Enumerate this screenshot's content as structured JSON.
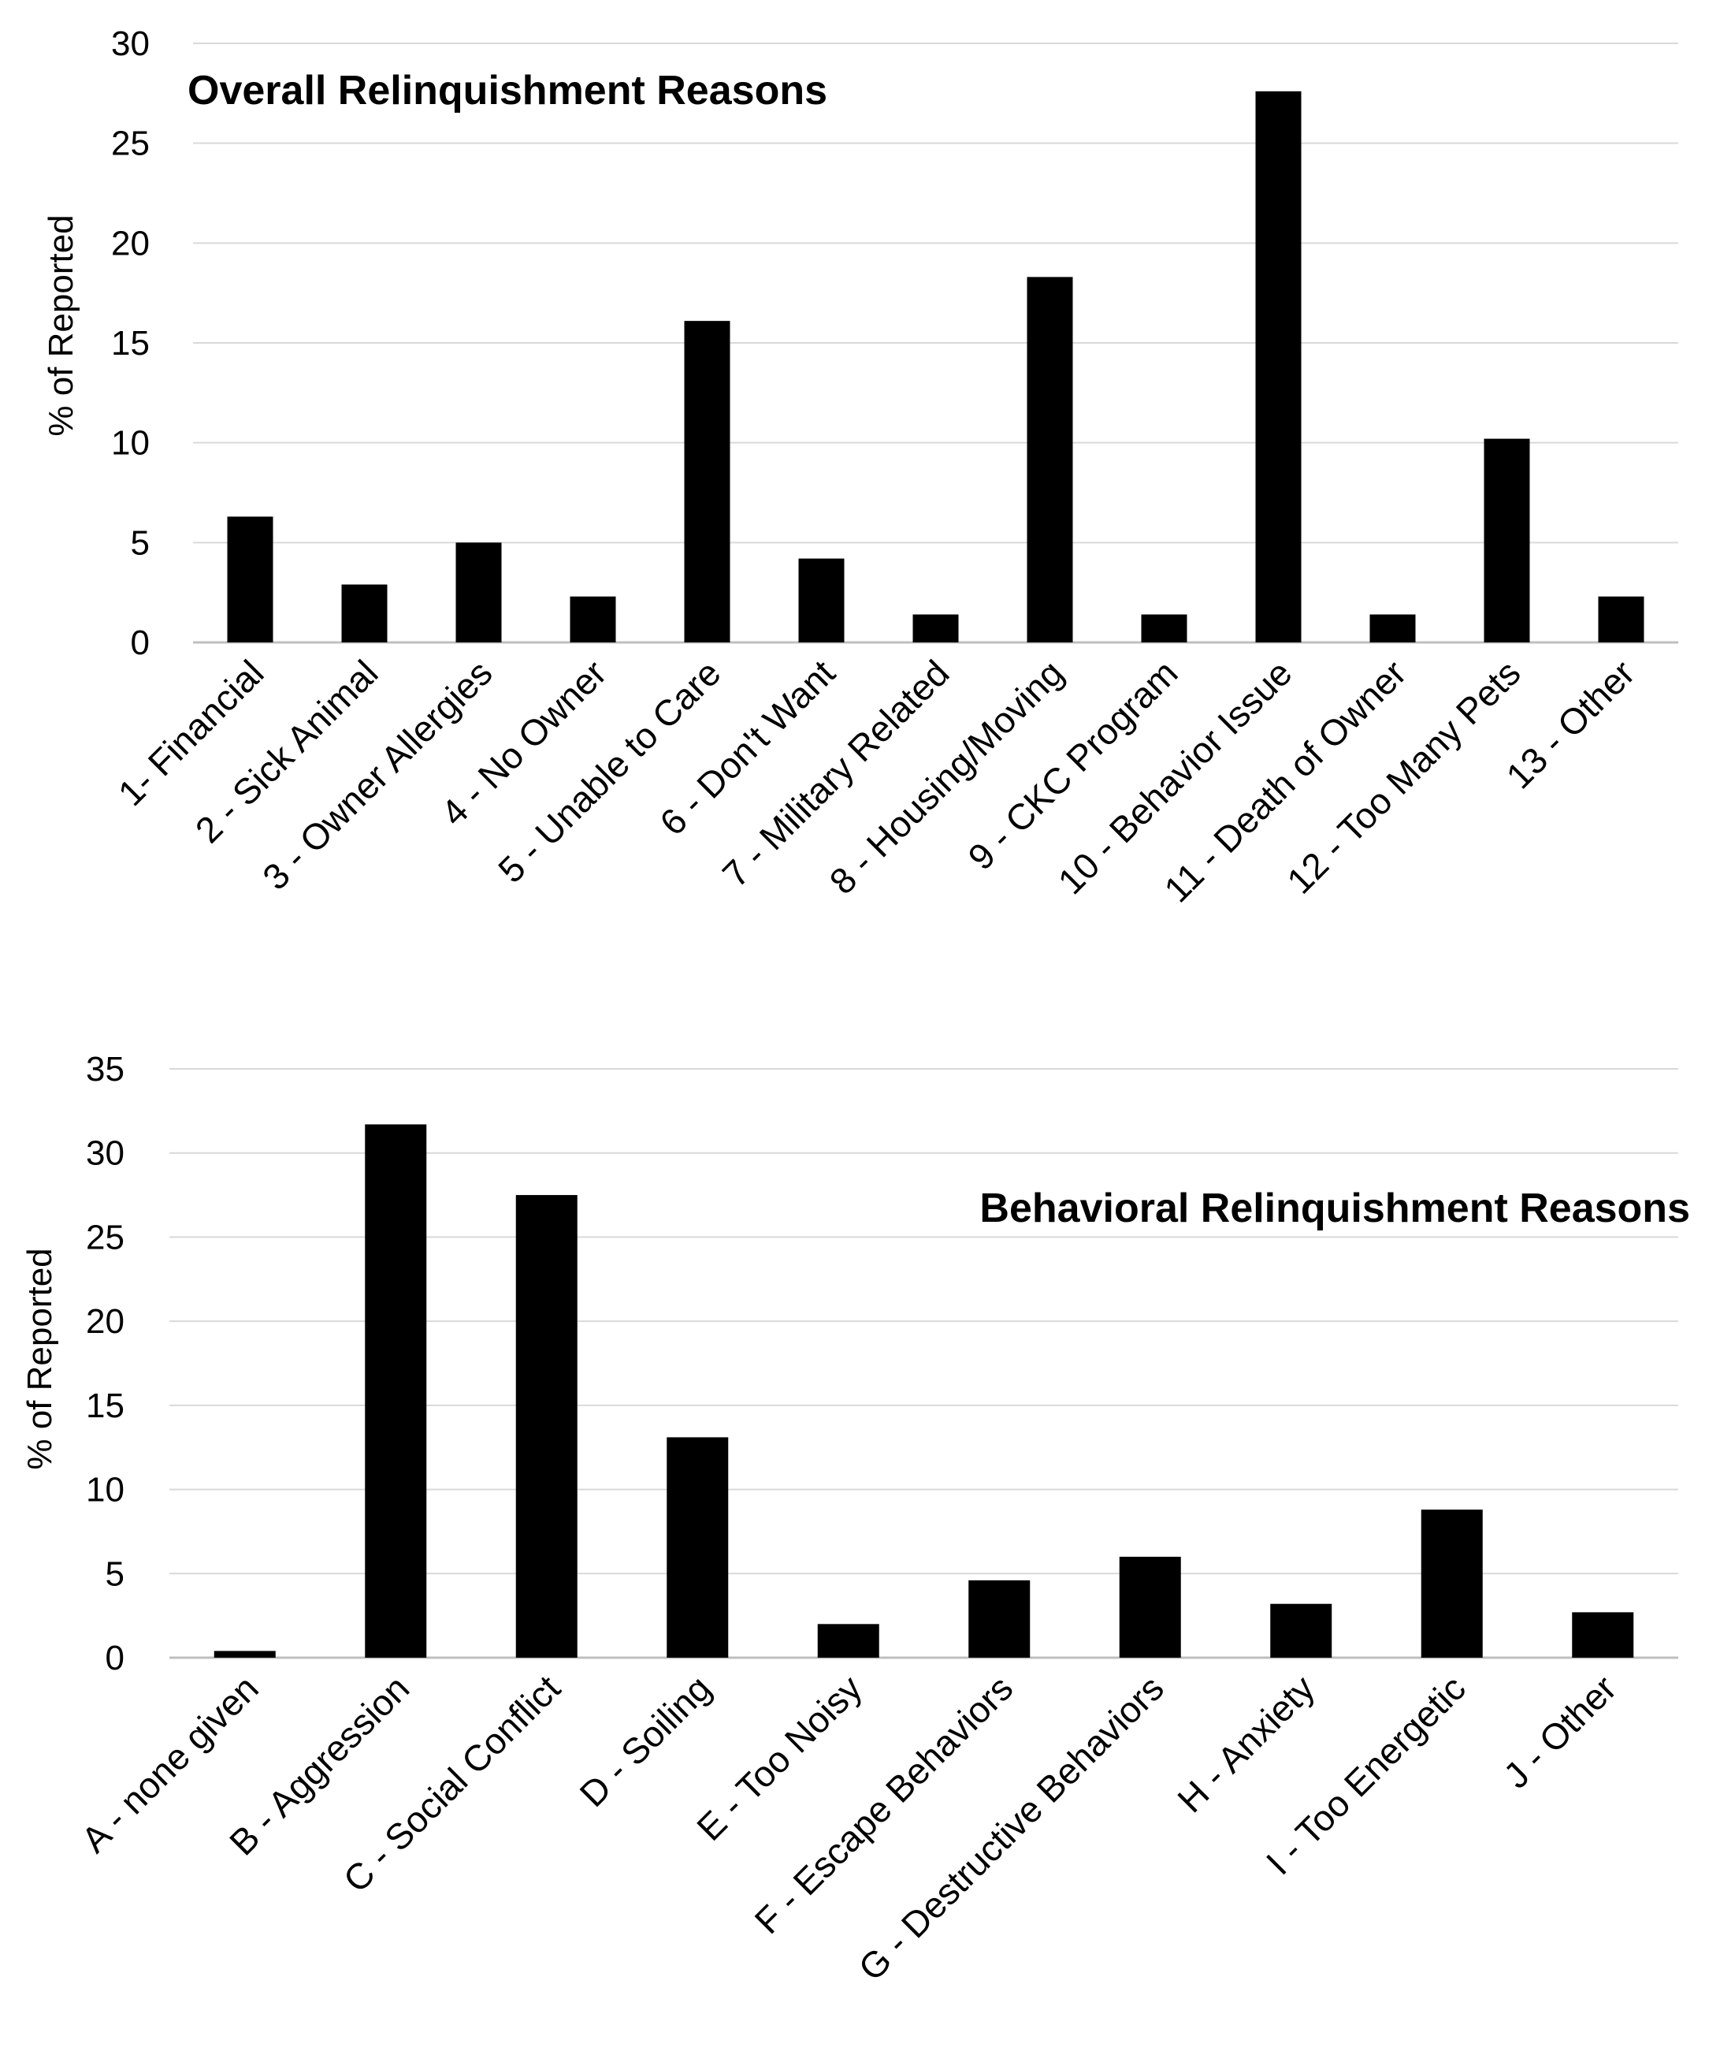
{
  "chart_data": [
    {
      "type": "bar",
      "title": "Overall Relinquishment Reasons",
      "ylabel": "% of Reported",
      "xlabel": "",
      "ylim": [
        0,
        30
      ],
      "yticks": [
        "0",
        "5",
        "10",
        "15",
        "20",
        "25",
        "30"
      ],
      "categories": [
        "1- Financial",
        "2 - Sick Animal",
        "3 - Owner Allergies",
        "4 - No Owner",
        "5 - Unable to Care",
        "6 - Don't Want",
        "7 - Military Related",
        "8 - Housing/Moving",
        "9 - CKC Program",
        "10 - Behavior Issue",
        "11 - Death of Owner",
        "12 - Too Many Pets",
        "13 - Other"
      ],
      "values": [
        6.3,
        2.9,
        5.0,
        2.3,
        16.1,
        4.2,
        1.4,
        18.3,
        1.4,
        27.6,
        1.4,
        10.2,
        2.3
      ],
      "grid": true,
      "legend": "none"
    },
    {
      "type": "bar",
      "title": "Behavioral Relinquishment Reasons",
      "ylabel": "% of Reported",
      "xlabel": "",
      "ylim": [
        0,
        35
      ],
      "yticks": [
        "0",
        "5",
        "10",
        "15",
        "20",
        "25",
        "30",
        "35"
      ],
      "categories": [
        "A - none given",
        "B - Aggression",
        "C - Social Conflict",
        "D - Soiling",
        "E - Too Noisy",
        "F - Escape Behaviors",
        "G - Destructive Behaviors",
        "H - Anxiety",
        "I - Too Energetic",
        "J - Other"
      ],
      "values": [
        0.4,
        31.7,
        27.5,
        13.1,
        2.0,
        4.6,
        6.0,
        3.2,
        8.8,
        2.7
      ],
      "grid": true,
      "legend": "none"
    }
  ]
}
